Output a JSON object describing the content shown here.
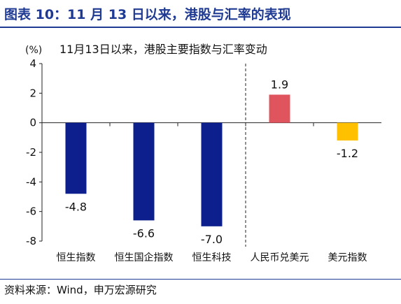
{
  "figure": {
    "title": "图表 10：11 月 13 日以来，港股与汇率的表现",
    "source": "资料来源：Wind，申万宏源研究"
  },
  "chart_data": {
    "type": "bar",
    "title": "11月13日以来，港股主要指数与汇率变动",
    "ylabel": "(%)",
    "xlabel": "",
    "categories": [
      "恒生指数",
      "恒生国企指数",
      "恒生科技",
      "人民币兑美元",
      "美元指数"
    ],
    "values": [
      -4.8,
      -6.6,
      -7.0,
      1.9,
      -1.2
    ],
    "value_labels": [
      "-4.8",
      "-6.6",
      "-7.0",
      "1.9",
      "-1.2"
    ],
    "bar_colors": [
      "#0d1f8c",
      "#0d1f8c",
      "#0d1f8c",
      "#e0545e",
      "#ffc000"
    ],
    "ylim": [
      -8,
      4
    ],
    "yticks": [
      "4",
      "2",
      "0",
      "-2",
      "-4",
      "-6",
      "-8"
    ],
    "ytick_values": [
      4,
      2,
      0,
      -2,
      -4,
      -6,
      -8
    ],
    "grid": false,
    "separator": "dashed vertical line between 恒生科技 and 人民币兑美元"
  }
}
